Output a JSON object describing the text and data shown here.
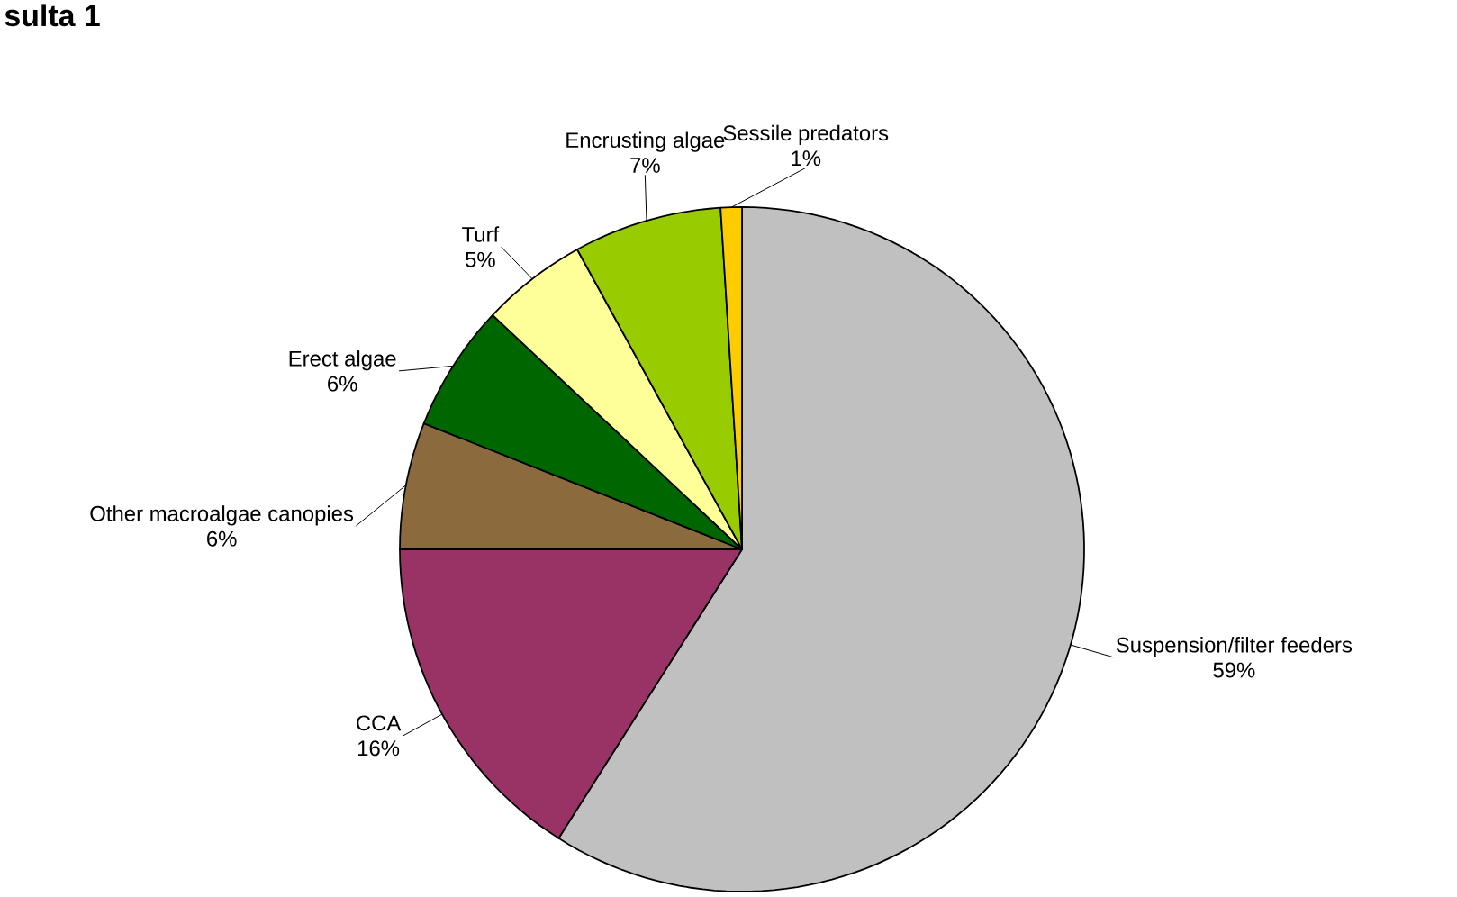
{
  "chart_data": {
    "type": "pie",
    "title": "sulta 1",
    "categories": [
      "Suspension/filter feeders",
      "CCA",
      "Other macroalgae canopies",
      "Erect algae",
      "Turf",
      "Encrusting algae",
      "Sessile predators"
    ],
    "values": [
      59,
      16,
      6,
      6,
      5,
      7,
      1
    ],
    "value_labels": [
      "59%",
      "16%",
      "6%",
      "6%",
      "5%",
      "7%",
      "1%"
    ],
    "colors": [
      "#c0c0c0",
      "#993366",
      "#8b6b3d",
      "#006600",
      "#ffff99",
      "#99cc00",
      "#ffcc00"
    ]
  }
}
